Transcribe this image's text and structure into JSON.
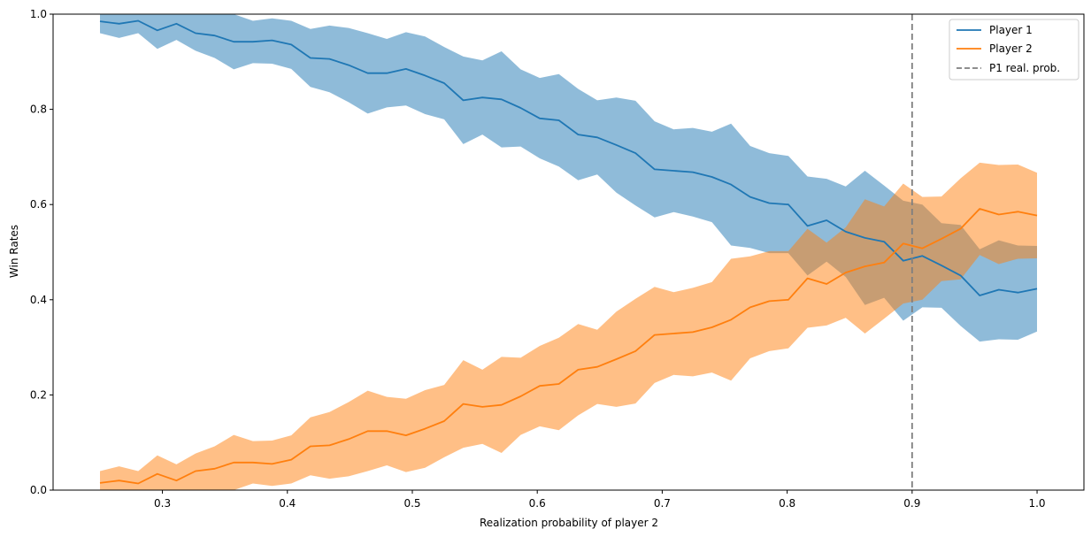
{
  "chart_data": {
    "type": "line",
    "xlabel": "Realization probability of player 2",
    "ylabel": "Win Rates",
    "xlim": [
      0.2125,
      1.0375
    ],
    "ylim": [
      0,
      1
    ],
    "xticks": [
      "0.3",
      "0.4",
      "0.5",
      "0.6",
      "0.7",
      "0.8",
      "0.9",
      "1.0"
    ],
    "yticks": [
      "0.0",
      "0.2",
      "0.4",
      "0.6",
      "0.8",
      "1.0"
    ],
    "grid": false,
    "legend_position": "top-right",
    "x": [
      0.25,
      0.2653,
      0.2806,
      0.2959,
      0.3112,
      0.3265,
      0.3418,
      0.3571,
      0.3724,
      0.3878,
      0.4031,
      0.4184,
      0.4337,
      0.449,
      0.4643,
      0.4796,
      0.4949,
      0.5102,
      0.5255,
      0.5408,
      0.5561,
      0.5714,
      0.5867,
      0.602,
      0.6173,
      0.6327,
      0.648,
      0.6633,
      0.6786,
      0.6939,
      0.7092,
      0.7245,
      0.7398,
      0.7551,
      0.7704,
      0.7857,
      0.801,
      0.8163,
      0.8316,
      0.8469,
      0.8622,
      0.8776,
      0.8929,
      0.9082,
      0.9235,
      0.9388,
      0.9541,
      0.9694,
      0.9847,
      1.0
    ],
    "series": [
      {
        "name": "Player 1",
        "color": "#1f77b4",
        "values": [
          0.985,
          0.98,
          0.986,
          0.966,
          0.98,
          0.96,
          0.955,
          0.942,
          0.942,
          0.945,
          0.936,
          0.908,
          0.906,
          0.893,
          0.876,
          0.876,
          0.885,
          0.871,
          0.855,
          0.819,
          0.825,
          0.821,
          0.803,
          0.781,
          0.777,
          0.747,
          0.741,
          0.725,
          0.708,
          0.674,
          0.671,
          0.668,
          0.658,
          0.642,
          0.616,
          0.603,
          0.6,
          0.555,
          0.567,
          0.543,
          0.53,
          0.522,
          0.482,
          0.492,
          0.472,
          0.451,
          0.409,
          0.421,
          0.415,
          0.423
        ],
        "lower": [
          0.96,
          0.95,
          0.96,
          0.927,
          0.946,
          0.923,
          0.908,
          0.884,
          0.897,
          0.896,
          0.885,
          0.847,
          0.836,
          0.815,
          0.791,
          0.804,
          0.808,
          0.79,
          0.779,
          0.727,
          0.747,
          0.72,
          0.722,
          0.697,
          0.68,
          0.651,
          0.663,
          0.625,
          0.598,
          0.573,
          0.584,
          0.575,
          0.563,
          0.514,
          0.509,
          0.498,
          0.498,
          0.451,
          0.48,
          0.448,
          0.389,
          0.404,
          0.356,
          0.384,
          0.383,
          0.345,
          0.312,
          0.317,
          0.316,
          0.333
        ],
        "upper": [
          1.0,
          1.0,
          1.0,
          1.0,
          1.0,
          1.0,
          1.0,
          1.0,
          0.986,
          0.991,
          0.986,
          0.969,
          0.976,
          0.971,
          0.96,
          0.948,
          0.962,
          0.953,
          0.931,
          0.911,
          0.903,
          0.922,
          0.884,
          0.866,
          0.874,
          0.843,
          0.819,
          0.825,
          0.818,
          0.775,
          0.758,
          0.761,
          0.753,
          0.77,
          0.723,
          0.708,
          0.702,
          0.659,
          0.654,
          0.638,
          0.671,
          0.64,
          0.608,
          0.6,
          0.561,
          0.557,
          0.506,
          0.525,
          0.514,
          0.513
        ]
      },
      {
        "name": "Player 2",
        "color": "#ff7f0e",
        "values": [
          0.015,
          0.02,
          0.014,
          0.034,
          0.02,
          0.04,
          0.045,
          0.058,
          0.058,
          0.055,
          0.064,
          0.092,
          0.094,
          0.107,
          0.124,
          0.124,
          0.115,
          0.129,
          0.145,
          0.181,
          0.175,
          0.179,
          0.197,
          0.219,
          0.223,
          0.253,
          0.259,
          0.275,
          0.292,
          0.326,
          0.329,
          0.332,
          0.342,
          0.358,
          0.384,
          0.397,
          0.4,
          0.445,
          0.433,
          0.457,
          0.47,
          0.478,
          0.518,
          0.508,
          0.528,
          0.549,
          0.591,
          0.579,
          0.585,
          0.577
        ],
        "lower": [
          0.0,
          0.0,
          0.0,
          0.0,
          0.0,
          0.0,
          0.0,
          0.0,
          0.014,
          0.009,
          0.014,
          0.031,
          0.024,
          0.029,
          0.04,
          0.052,
          0.038,
          0.047,
          0.069,
          0.089,
          0.097,
          0.078,
          0.116,
          0.134,
          0.126,
          0.157,
          0.181,
          0.175,
          0.182,
          0.225,
          0.242,
          0.239,
          0.247,
          0.23,
          0.277,
          0.292,
          0.298,
          0.341,
          0.346,
          0.362,
          0.329,
          0.36,
          0.392,
          0.4,
          0.439,
          0.443,
          0.494,
          0.475,
          0.486,
          0.487
        ],
        "upper": [
          0.04,
          0.05,
          0.04,
          0.073,
          0.054,
          0.077,
          0.092,
          0.116,
          0.103,
          0.104,
          0.115,
          0.153,
          0.164,
          0.185,
          0.209,
          0.196,
          0.192,
          0.21,
          0.221,
          0.273,
          0.253,
          0.28,
          0.278,
          0.303,
          0.32,
          0.349,
          0.337,
          0.375,
          0.402,
          0.427,
          0.416,
          0.425,
          0.437,
          0.486,
          0.491,
          0.502,
          0.502,
          0.549,
          0.52,
          0.552,
          0.611,
          0.596,
          0.644,
          0.616,
          0.617,
          0.655,
          0.688,
          0.683,
          0.684,
          0.667
        ]
      }
    ],
    "reference_line": {
      "name": "P1 real. prob.",
      "x": 0.9,
      "color": "#7f7f7f",
      "style": "dashed"
    }
  }
}
